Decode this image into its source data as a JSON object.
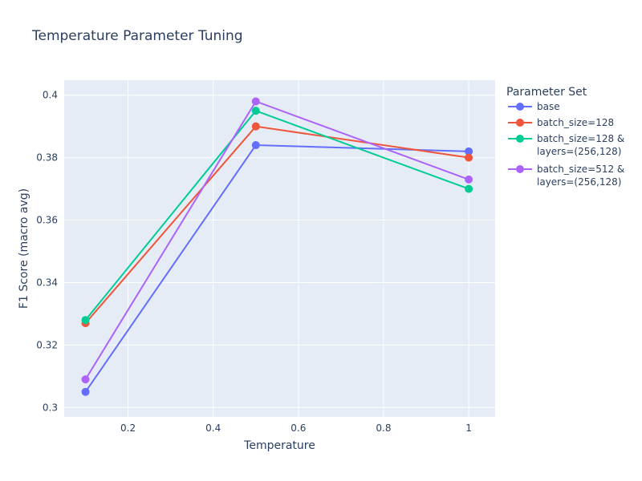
{
  "chart_data": {
    "type": "line",
    "title": "Temperature Parameter Tuning",
    "xlabel": "Temperature",
    "ylabel": "F1 Score (macro avg)",
    "xlim": [
      0.05,
      1.062
    ],
    "ylim": [
      0.297,
      0.4048
    ],
    "x_ticks": [
      0.2,
      0.4,
      0.6,
      0.8,
      1
    ],
    "x_tick_labels": [
      "0.2",
      "0.4",
      "0.6",
      "0.8",
      "1"
    ],
    "y_ticks": [
      0.3,
      0.32,
      0.34,
      0.36,
      0.38,
      0.4
    ],
    "y_tick_labels": [
      "0.3",
      "0.32",
      "0.34",
      "0.36",
      "0.38",
      "0.4"
    ],
    "grid": true,
    "legend_title": "Parameter Set",
    "legend_position": "right",
    "x": [
      0.1,
      0.5,
      1
    ],
    "series": [
      {
        "name": "base",
        "lines": [
          "base"
        ],
        "color": "#636efa",
        "values": [
          0.305,
          0.384,
          0.382
        ]
      },
      {
        "name": "batch_size=128",
        "lines": [
          "batch_size=128"
        ],
        "color": "#EF553B",
        "values": [
          0.327,
          0.39,
          0.38
        ]
      },
      {
        "name": "batch_size=128 & layers=(256,128)",
        "lines": [
          "batch_size=128 &",
          "layers=(256,128)"
        ],
        "color": "#00cc96",
        "values": [
          0.328,
          0.395,
          0.37
        ]
      },
      {
        "name": "batch_size=512 & layers=(256,128)",
        "lines": [
          "batch_size=512 &",
          "layers=(256,128)"
        ],
        "color": "#ab63fa",
        "values": [
          0.309,
          0.398,
          0.373
        ]
      }
    ]
  }
}
